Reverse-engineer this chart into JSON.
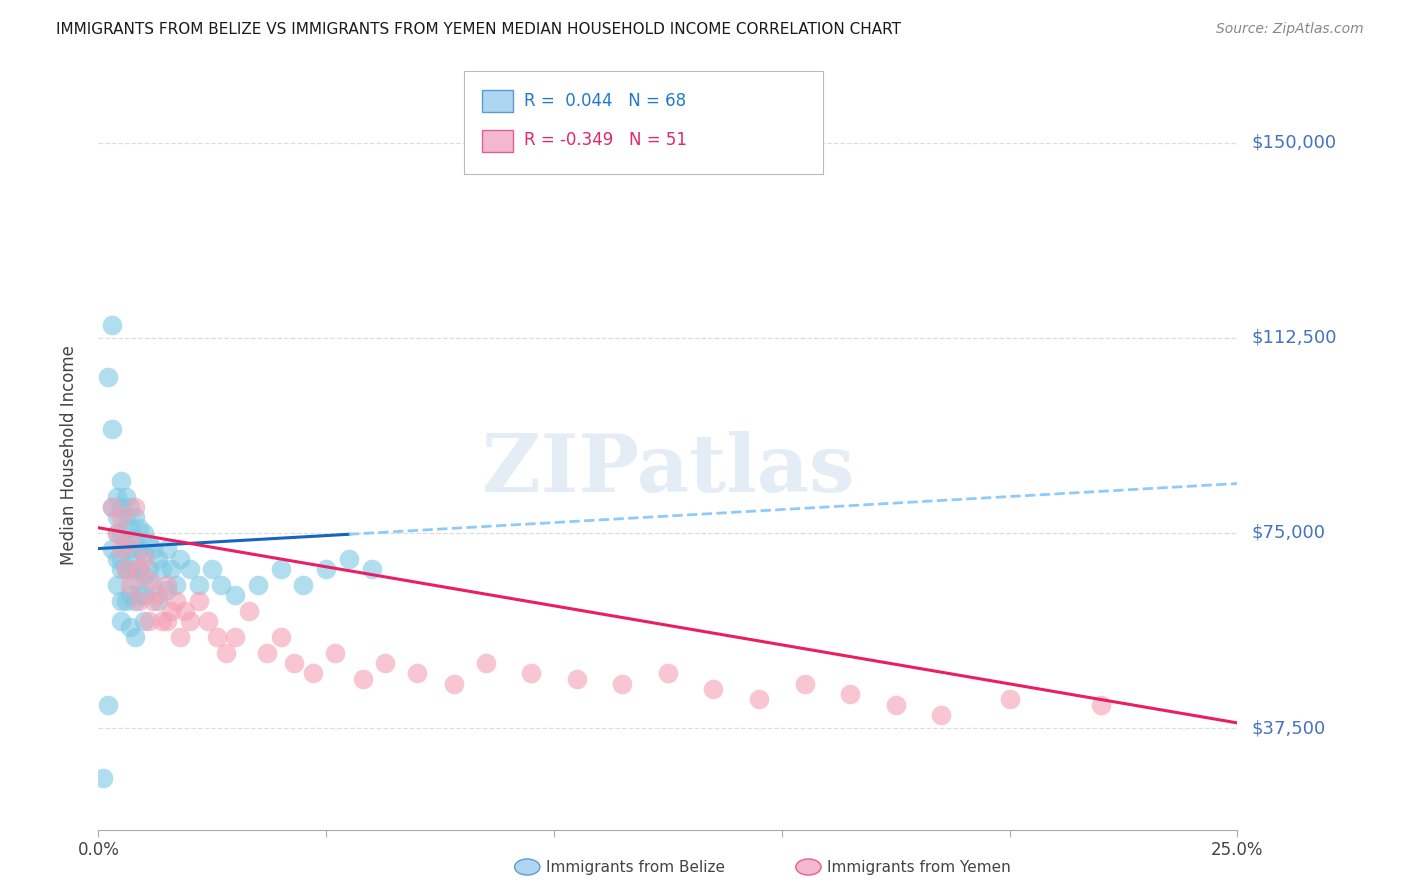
{
  "title": "IMMIGRANTS FROM BELIZE VS IMMIGRANTS FROM YEMEN MEDIAN HOUSEHOLD INCOME CORRELATION CHART",
  "source": "Source: ZipAtlas.com",
  "ylabel": "Median Household Income",
  "xlim": [
    0.0,
    0.25
  ],
  "ylim": [
    18000,
    162000
  ],
  "yticks": [
    37500,
    75000,
    112500,
    150000
  ],
  "ytick_labels_right": [
    "$37,500",
    "$75,000",
    "$112,500",
    "$150,000"
  ],
  "xticks": [
    0.0,
    0.05,
    0.1,
    0.15,
    0.2,
    0.25
  ],
  "xtick_labels": [
    "0.0%",
    "",
    "",
    "",
    "",
    "25.0%"
  ],
  "belize_color": "#7ec8e3",
  "yemen_color": "#f4a0b5",
  "trend_belize_solid_color": "#1565C0",
  "trend_belize_dashed_color": "#90caf9",
  "trend_yemen_color": "#e91e63",
  "watermark": "ZIPatlas",
  "grid_color": "#dddddd",
  "belize_R": 0.044,
  "belize_N": 68,
  "yemen_R": -0.349,
  "yemen_N": 51,
  "belize_scatter_x": [
    0.001,
    0.002,
    0.002,
    0.003,
    0.003,
    0.003,
    0.003,
    0.004,
    0.004,
    0.004,
    0.004,
    0.004,
    0.005,
    0.005,
    0.005,
    0.005,
    0.005,
    0.005,
    0.005,
    0.006,
    0.006,
    0.006,
    0.006,
    0.006,
    0.007,
    0.007,
    0.007,
    0.007,
    0.007,
    0.007,
    0.008,
    0.008,
    0.008,
    0.008,
    0.008,
    0.008,
    0.009,
    0.009,
    0.009,
    0.009,
    0.01,
    0.01,
    0.01,
    0.01,
    0.01,
    0.011,
    0.011,
    0.012,
    0.012,
    0.013,
    0.013,
    0.014,
    0.015,
    0.015,
    0.016,
    0.017,
    0.018,
    0.02,
    0.022,
    0.025,
    0.027,
    0.03,
    0.035,
    0.04,
    0.045,
    0.05,
    0.055,
    0.06
  ],
  "belize_scatter_y": [
    28000,
    42000,
    105000,
    115000,
    95000,
    80000,
    72000,
    82000,
    78000,
    75000,
    70000,
    65000,
    85000,
    80000,
    75000,
    70000,
    68000,
    62000,
    58000,
    82000,
    78000,
    73000,
    68000,
    62000,
    80000,
    76000,
    72000,
    68000,
    63000,
    57000,
    78000,
    74000,
    70000,
    66000,
    62000,
    55000,
    76000,
    72000,
    68000,
    63000,
    75000,
    71000,
    67000,
    63000,
    58000,
    73000,
    68000,
    72000,
    65000,
    70000,
    62000,
    68000,
    72000,
    64000,
    68000,
    65000,
    70000,
    68000,
    65000,
    68000,
    65000,
    63000,
    65000,
    68000,
    65000,
    68000,
    70000,
    68000
  ],
  "yemen_scatter_x": [
    0.003,
    0.004,
    0.005,
    0.005,
    0.006,
    0.007,
    0.007,
    0.008,
    0.009,
    0.009,
    0.01,
    0.011,
    0.011,
    0.012,
    0.013,
    0.014,
    0.015,
    0.015,
    0.016,
    0.017,
    0.018,
    0.019,
    0.02,
    0.022,
    0.024,
    0.026,
    0.028,
    0.03,
    0.033,
    0.037,
    0.04,
    0.043,
    0.047,
    0.052,
    0.058,
    0.063,
    0.07,
    0.078,
    0.085,
    0.095,
    0.105,
    0.115,
    0.125,
    0.135,
    0.145,
    0.155,
    0.165,
    0.175,
    0.185,
    0.2,
    0.22
  ],
  "yemen_scatter_y": [
    80000,
    75000,
    72000,
    78000,
    68000,
    73000,
    65000,
    80000,
    68000,
    62000,
    70000,
    66000,
    58000,
    62000,
    63000,
    58000,
    65000,
    58000,
    60000,
    62000,
    55000,
    60000,
    58000,
    62000,
    58000,
    55000,
    52000,
    55000,
    60000,
    52000,
    55000,
    50000,
    48000,
    52000,
    47000,
    50000,
    48000,
    46000,
    50000,
    48000,
    47000,
    46000,
    48000,
    45000,
    43000,
    46000,
    44000,
    42000,
    40000,
    43000,
    42000
  ]
}
